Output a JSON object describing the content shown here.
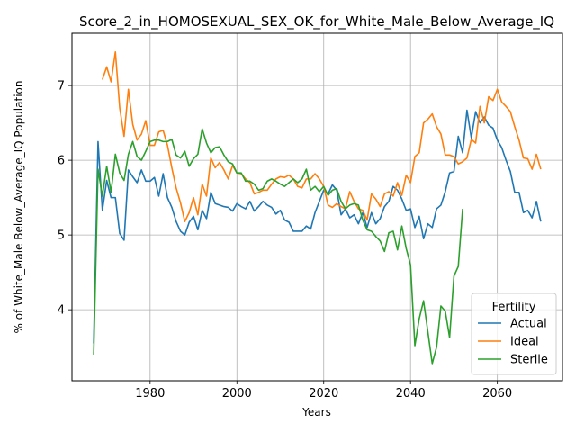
{
  "chart_data": {
    "type": "line",
    "title": "Score_2_in_HOMOSEXUAL_SEX_OK_for_White_Male_Below_Average_IQ",
    "xlabel": "Years",
    "ylabel": "% of White_Male Below_Average_IQ Population",
    "xlim": [
      1962,
      2075
    ],
    "ylim": [
      3.05,
      7.7
    ],
    "x_ticks": [
      1980,
      2000,
      2020,
      2040,
      2060
    ],
    "y_ticks": [
      4,
      5,
      6,
      7
    ],
    "grid": true,
    "legend": {
      "title": "Fertility",
      "placement": "lower-right"
    },
    "series": [
      {
        "name": "Actual",
        "color": "#1f77b4",
        "points": [
          [
            1967,
            3.55
          ],
          [
            1968,
            6.25
          ],
          [
            1969,
            5.33
          ],
          [
            1970,
            5.73
          ],
          [
            1971,
            5.5
          ],
          [
            1972,
            5.5
          ],
          [
            1973,
            5.02
          ],
          [
            1974,
            4.93
          ],
          [
            1975,
            5.87
          ],
          [
            1976,
            5.78
          ],
          [
            1977,
            5.7
          ],
          [
            1978,
            5.87
          ],
          [
            1979,
            5.72
          ],
          [
            1980,
            5.72
          ],
          [
            1981,
            5.77
          ],
          [
            1982,
            5.52
          ],
          [
            1983,
            5.82
          ],
          [
            1984,
            5.5
          ],
          [
            1985,
            5.37
          ],
          [
            1986,
            5.18
          ],
          [
            1987,
            5.05
          ],
          [
            1988,
            5.0
          ],
          [
            1989,
            5.17
          ],
          [
            1990,
            5.25
          ],
          [
            1991,
            5.07
          ],
          [
            1992,
            5.33
          ],
          [
            1993,
            5.22
          ],
          [
            1994,
            5.57
          ],
          [
            1995,
            5.42
          ],
          [
            1996,
            5.4
          ],
          [
            1997,
            5.38
          ],
          [
            1998,
            5.37
          ],
          [
            1999,
            5.32
          ],
          [
            2000,
            5.42
          ],
          [
            2001,
            5.38
          ],
          [
            2002,
            5.35
          ],
          [
            2003,
            5.45
          ],
          [
            2004,
            5.32
          ],
          [
            2005,
            5.38
          ],
          [
            2006,
            5.45
          ],
          [
            2007,
            5.4
          ],
          [
            2008,
            5.37
          ],
          [
            2009,
            5.28
          ],
          [
            2010,
            5.33
          ],
          [
            2011,
            5.2
          ],
          [
            2012,
            5.17
          ],
          [
            2013,
            5.05
          ],
          [
            2014,
            5.05
          ],
          [
            2015,
            5.05
          ],
          [
            2016,
            5.12
          ],
          [
            2017,
            5.08
          ],
          [
            2018,
            5.3
          ],
          [
            2019,
            5.45
          ],
          [
            2020,
            5.6
          ],
          [
            2021,
            5.55
          ],
          [
            2022,
            5.67
          ],
          [
            2023,
            5.6
          ],
          [
            2024,
            5.27
          ],
          [
            2025,
            5.35
          ],
          [
            2026,
            5.23
          ],
          [
            2027,
            5.27
          ],
          [
            2028,
            5.15
          ],
          [
            2029,
            5.3
          ],
          [
            2030,
            5.1
          ],
          [
            2031,
            5.3
          ],
          [
            2032,
            5.15
          ],
          [
            2033,
            5.22
          ],
          [
            2034,
            5.38
          ],
          [
            2035,
            5.45
          ],
          [
            2036,
            5.65
          ],
          [
            2037,
            5.6
          ],
          [
            2038,
            5.48
          ],
          [
            2039,
            5.33
          ],
          [
            2040,
            5.35
          ],
          [
            2041,
            5.1
          ],
          [
            2042,
            5.25
          ],
          [
            2043,
            4.95
          ],
          [
            2044,
            5.15
          ],
          [
            2045,
            5.1
          ],
          [
            2046,
            5.35
          ],
          [
            2047,
            5.4
          ],
          [
            2048,
            5.58
          ],
          [
            2049,
            5.83
          ],
          [
            2050,
            5.85
          ],
          [
            2051,
            6.32
          ],
          [
            2052,
            6.1
          ],
          [
            2053,
            6.67
          ],
          [
            2054,
            6.3
          ],
          [
            2055,
            6.65
          ],
          [
            2056,
            6.5
          ],
          [
            2057,
            6.58
          ],
          [
            2058,
            6.47
          ],
          [
            2059,
            6.43
          ],
          [
            2060,
            6.27
          ],
          [
            2061,
            6.17
          ],
          [
            2062,
            6.0
          ],
          [
            2063,
            5.85
          ],
          [
            2064,
            5.57
          ],
          [
            2065,
            5.57
          ],
          [
            2066,
            5.3
          ],
          [
            2067,
            5.33
          ],
          [
            2068,
            5.23
          ],
          [
            2069,
            5.45
          ],
          [
            2070,
            5.18
          ]
        ]
      },
      {
        "name": "Ideal",
        "color": "#ff7f0e",
        "points": [
          [
            1969,
            7.08
          ],
          [
            1970,
            7.25
          ],
          [
            1971,
            7.05
          ],
          [
            1972,
            7.45
          ],
          [
            1973,
            6.7
          ],
          [
            1974,
            6.32
          ],
          [
            1975,
            6.95
          ],
          [
            1976,
            6.48
          ],
          [
            1977,
            6.27
          ],
          [
            1978,
            6.35
          ],
          [
            1979,
            6.53
          ],
          [
            1980,
            6.2
          ],
          [
            1981,
            6.2
          ],
          [
            1982,
            6.38
          ],
          [
            1983,
            6.4
          ],
          [
            1984,
            6.2
          ],
          [
            1985,
            5.9
          ],
          [
            1986,
            5.63
          ],
          [
            1987,
            5.43
          ],
          [
            1988,
            5.18
          ],
          [
            1989,
            5.3
          ],
          [
            1990,
            5.5
          ],
          [
            1991,
            5.27
          ],
          [
            1992,
            5.68
          ],
          [
            1993,
            5.52
          ],
          [
            1994,
            6.03
          ],
          [
            1995,
            5.9
          ],
          [
            1996,
            5.97
          ],
          [
            1997,
            5.87
          ],
          [
            1998,
            5.75
          ],
          [
            1999,
            5.93
          ],
          [
            2000,
            5.83
          ],
          [
            2001,
            5.82
          ],
          [
            2002,
            5.75
          ],
          [
            2003,
            5.7
          ],
          [
            2004,
            5.55
          ],
          [
            2005,
            5.57
          ],
          [
            2006,
            5.6
          ],
          [
            2007,
            5.6
          ],
          [
            2008,
            5.68
          ],
          [
            2009,
            5.75
          ],
          [
            2010,
            5.78
          ],
          [
            2011,
            5.77
          ],
          [
            2012,
            5.8
          ],
          [
            2013,
            5.75
          ],
          [
            2014,
            5.65
          ],
          [
            2015,
            5.63
          ],
          [
            2016,
            5.75
          ],
          [
            2017,
            5.75
          ],
          [
            2018,
            5.82
          ],
          [
            2019,
            5.75
          ],
          [
            2020,
            5.65
          ],
          [
            2021,
            5.4
          ],
          [
            2022,
            5.37
          ],
          [
            2023,
            5.42
          ],
          [
            2024,
            5.38
          ],
          [
            2025,
            5.35
          ],
          [
            2026,
            5.58
          ],
          [
            2027,
            5.45
          ],
          [
            2028,
            5.35
          ],
          [
            2029,
            5.33
          ],
          [
            2030,
            5.2
          ],
          [
            2031,
            5.55
          ],
          [
            2032,
            5.48
          ],
          [
            2033,
            5.38
          ],
          [
            2034,
            5.55
          ],
          [
            2035,
            5.58
          ],
          [
            2036,
            5.52
          ],
          [
            2037,
            5.7
          ],
          [
            2038,
            5.53
          ],
          [
            2039,
            5.8
          ],
          [
            2040,
            5.7
          ],
          [
            2041,
            6.05
          ],
          [
            2042,
            6.1
          ],
          [
            2043,
            6.5
          ],
          [
            2044,
            6.55
          ],
          [
            2045,
            6.62
          ],
          [
            2046,
            6.45
          ],
          [
            2047,
            6.35
          ],
          [
            2048,
            6.07
          ],
          [
            2049,
            6.07
          ],
          [
            2050,
            6.05
          ],
          [
            2051,
            5.95
          ],
          [
            2052,
            5.98
          ],
          [
            2053,
            6.03
          ],
          [
            2054,
            6.28
          ],
          [
            2055,
            6.23
          ],
          [
            2056,
            6.72
          ],
          [
            2057,
            6.5
          ],
          [
            2058,
            6.85
          ],
          [
            2059,
            6.8
          ],
          [
            2060,
            6.95
          ],
          [
            2061,
            6.78
          ],
          [
            2062,
            6.72
          ],
          [
            2063,
            6.65
          ],
          [
            2064,
            6.45
          ],
          [
            2065,
            6.27
          ],
          [
            2066,
            6.03
          ],
          [
            2067,
            6.02
          ],
          [
            2068,
            5.88
          ],
          [
            2069,
            6.08
          ],
          [
            2070,
            5.88
          ]
        ]
      },
      {
        "name": "Sterile",
        "color": "#2ca02c",
        "points": [
          [
            1967,
            3.4
          ],
          [
            1968,
            5.88
          ],
          [
            1969,
            5.52
          ],
          [
            1970,
            5.92
          ],
          [
            1971,
            5.57
          ],
          [
            1972,
            6.08
          ],
          [
            1973,
            5.83
          ],
          [
            1974,
            5.73
          ],
          [
            1975,
            6.08
          ],
          [
            1976,
            6.25
          ],
          [
            1977,
            6.05
          ],
          [
            1978,
            6.0
          ],
          [
            1979,
            6.12
          ],
          [
            1980,
            6.25
          ],
          [
            1981,
            6.27
          ],
          [
            1982,
            6.27
          ],
          [
            1983,
            6.25
          ],
          [
            1984,
            6.25
          ],
          [
            1985,
            6.28
          ],
          [
            1986,
            6.07
          ],
          [
            1987,
            6.03
          ],
          [
            1988,
            6.12
          ],
          [
            1989,
            5.92
          ],
          [
            1990,
            6.02
          ],
          [
            1991,
            6.08
          ],
          [
            1992,
            6.42
          ],
          [
            1993,
            6.23
          ],
          [
            1994,
            6.1
          ],
          [
            1995,
            6.17
          ],
          [
            1996,
            6.18
          ],
          [
            1997,
            6.07
          ],
          [
            1998,
            5.98
          ],
          [
            1999,
            5.95
          ],
          [
            2000,
            5.83
          ],
          [
            2001,
            5.83
          ],
          [
            2002,
            5.72
          ],
          [
            2003,
            5.72
          ],
          [
            2004,
            5.68
          ],
          [
            2005,
            5.6
          ],
          [
            2006,
            5.62
          ],
          [
            2007,
            5.72
          ],
          [
            2008,
            5.75
          ],
          [
            2009,
            5.72
          ],
          [
            2010,
            5.68
          ],
          [
            2011,
            5.65
          ],
          [
            2012,
            5.7
          ],
          [
            2013,
            5.75
          ],
          [
            2014,
            5.7
          ],
          [
            2015,
            5.75
          ],
          [
            2016,
            5.88
          ],
          [
            2017,
            5.6
          ],
          [
            2018,
            5.65
          ],
          [
            2019,
            5.58
          ],
          [
            2020,
            5.65
          ],
          [
            2021,
            5.53
          ],
          [
            2022,
            5.6
          ],
          [
            2023,
            5.62
          ],
          [
            2024,
            5.45
          ],
          [
            2025,
            5.35
          ],
          [
            2026,
            5.4
          ],
          [
            2027,
            5.42
          ],
          [
            2028,
            5.4
          ],
          [
            2029,
            5.2
          ],
          [
            2030,
            5.07
          ],
          [
            2031,
            5.05
          ],
          [
            2032,
            4.98
          ],
          [
            2033,
            4.92
          ],
          [
            2034,
            4.78
          ],
          [
            2035,
            5.03
          ],
          [
            2036,
            5.05
          ],
          [
            2037,
            4.8
          ],
          [
            2038,
            5.12
          ],
          [
            2039,
            4.82
          ],
          [
            2040,
            4.6
          ],
          [
            2041,
            3.52
          ],
          [
            2042,
            3.88
          ],
          [
            2043,
            4.12
          ],
          [
            2044,
            3.7
          ],
          [
            2045,
            3.28
          ],
          [
            2046,
            3.5
          ],
          [
            2047,
            4.05
          ],
          [
            2048,
            3.98
          ],
          [
            2049,
            3.63
          ],
          [
            2050,
            4.45
          ],
          [
            2051,
            4.58
          ],
          [
            2052,
            5.35
          ]
        ]
      }
    ]
  }
}
